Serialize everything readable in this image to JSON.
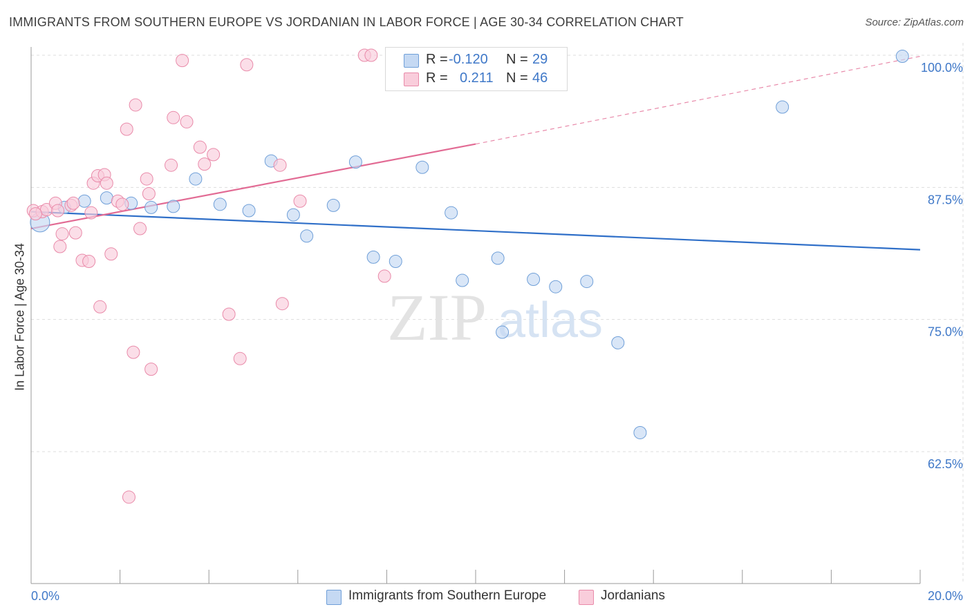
{
  "title": "IMMIGRANTS FROM SOUTHERN EUROPE VS JORDANIAN IN LABOR FORCE | AGE 30-34 CORRELATION CHART",
  "source": "Source: ZipAtlas.com",
  "watermark": {
    "zip": "ZIP",
    "atlas": "atlas"
  },
  "legend": {
    "rows": [
      {
        "r_label": "R =",
        "r_value": "-0.120",
        "n_label": "N =",
        "n_value": "29"
      },
      {
        "r_label": "R =",
        "r_value": "0.211",
        "n_label": "N =",
        "n_value": "46"
      }
    ]
  },
  "bottom_legend": [
    "Immigrants from Southern Europe",
    "Jordanians"
  ],
  "colors": {
    "blue_fill": "#c5d9f3",
    "blue_stroke": "#6f9fd8",
    "blue_line": "#2f6fc8",
    "pink_fill": "#f9cddb",
    "pink_stroke": "#e98aa9",
    "pink_line": "#e26b94",
    "axis_text": "#3f78c8",
    "grid": "#dddddd"
  },
  "chart_data": {
    "type": "scatter",
    "ylabel": "In Labor Force | Age 30-34",
    "xlim": [
      0,
      20
    ],
    "ylim": [
      50,
      100
    ],
    "x_tick_labels": [
      "0.0%",
      "20.0%"
    ],
    "y_ticks": [
      62.5,
      75.0,
      87.5,
      100.0
    ],
    "y_tick_labels": [
      "62.5%",
      "75.0%",
      "87.5%",
      "100.0%"
    ],
    "grid": "horizontal dashed",
    "legend_position": "top-center",
    "series": [
      {
        "name": "Immigrants from Southern Europe",
        "color": "blue",
        "trend": {
          "x": [
            0.0,
            20.0
          ],
          "y": [
            85.2,
            81.6
          ]
        },
        "points": [
          [
            0.2,
            84.2,
            14
          ],
          [
            0.75,
            85.6,
            9
          ],
          [
            1.2,
            86.2,
            9
          ],
          [
            1.7,
            86.5,
            9
          ],
          [
            2.25,
            86.0,
            9
          ],
          [
            2.7,
            85.6,
            9
          ],
          [
            3.2,
            85.7,
            9
          ],
          [
            3.7,
            88.3,
            9
          ],
          [
            4.25,
            85.9,
            9
          ],
          [
            4.9,
            85.3,
            9
          ],
          [
            5.4,
            90.0,
            9
          ],
          [
            5.9,
            84.9,
            9
          ],
          [
            6.2,
            82.9,
            9
          ],
          [
            6.8,
            85.8,
            9
          ],
          [
            7.3,
            89.9,
            9
          ],
          [
            7.7,
            80.9,
            9
          ],
          [
            8.2,
            80.5,
            9
          ],
          [
            8.8,
            89.4,
            9
          ],
          [
            9.45,
            85.1,
            9
          ],
          [
            9.7,
            78.7,
            9
          ],
          [
            10.5,
            80.8,
            9
          ],
          [
            10.6,
            73.8,
            9
          ],
          [
            11.3,
            78.8,
            9
          ],
          [
            11.8,
            78.1,
            9
          ],
          [
            12.5,
            78.6,
            9
          ],
          [
            13.2,
            72.8,
            9
          ],
          [
            13.7,
            64.3,
            9
          ],
          [
            16.9,
            95.1,
            9
          ],
          [
            19.6,
            99.9,
            9
          ]
        ]
      },
      {
        "name": "Jordanians",
        "color": "pink",
        "trend": {
          "x": [
            0.0,
            10.0
          ],
          "y": [
            83.6,
            91.6
          ],
          "dashed_to": {
            "x": 20.0,
            "y": 99.9
          }
        },
        "points": [
          [
            0.05,
            85.3,
            9
          ],
          [
            0.25,
            85.2,
            9
          ],
          [
            0.35,
            85.4,
            9
          ],
          [
            0.55,
            86.0,
            9
          ],
          [
            0.6,
            85.3,
            9
          ],
          [
            0.65,
            81.9,
            9
          ],
          [
            0.7,
            83.1,
            9
          ],
          [
            0.9,
            85.8,
            9
          ],
          [
            0.95,
            86.0,
            9
          ],
          [
            1.0,
            83.2,
            9
          ],
          [
            1.15,
            80.6,
            9
          ],
          [
            1.3,
            80.5,
            9
          ],
          [
            1.35,
            85.1,
            9
          ],
          [
            1.4,
            87.9,
            9
          ],
          [
            1.5,
            88.6,
            9
          ],
          [
            1.55,
            76.2,
            9
          ],
          [
            1.65,
            88.7,
            9
          ],
          [
            1.7,
            87.9,
            9
          ],
          [
            1.8,
            81.2,
            9
          ],
          [
            1.95,
            86.2,
            9
          ],
          [
            2.05,
            85.9,
            9
          ],
          [
            2.15,
            93.0,
            9
          ],
          [
            2.2,
            58.2,
            9
          ],
          [
            2.3,
            71.9,
            9
          ],
          [
            2.35,
            95.3,
            9
          ],
          [
            2.45,
            83.6,
            9
          ],
          [
            2.6,
            88.3,
            9
          ],
          [
            2.65,
            86.9,
            9
          ],
          [
            2.7,
            70.3,
            9
          ],
          [
            3.15,
            89.6,
            9
          ],
          [
            3.2,
            94.1,
            9
          ],
          [
            3.4,
            99.5,
            9
          ],
          [
            3.5,
            93.7,
            9
          ],
          [
            3.8,
            91.3,
            9
          ],
          [
            3.9,
            89.7,
            9
          ],
          [
            4.1,
            90.6,
            9
          ],
          [
            4.45,
            75.5,
            9
          ],
          [
            4.7,
            71.3,
            9
          ],
          [
            4.85,
            99.1,
            9
          ],
          [
            5.6,
            89.6,
            9
          ],
          [
            5.65,
            76.5,
            9
          ],
          [
            6.05,
            86.2,
            9
          ],
          [
            7.95,
            79.1,
            9
          ],
          [
            7.5,
            100.0,
            9
          ],
          [
            7.65,
            100.0,
            9
          ],
          [
            0.1,
            85.0,
            9
          ]
        ]
      }
    ]
  }
}
